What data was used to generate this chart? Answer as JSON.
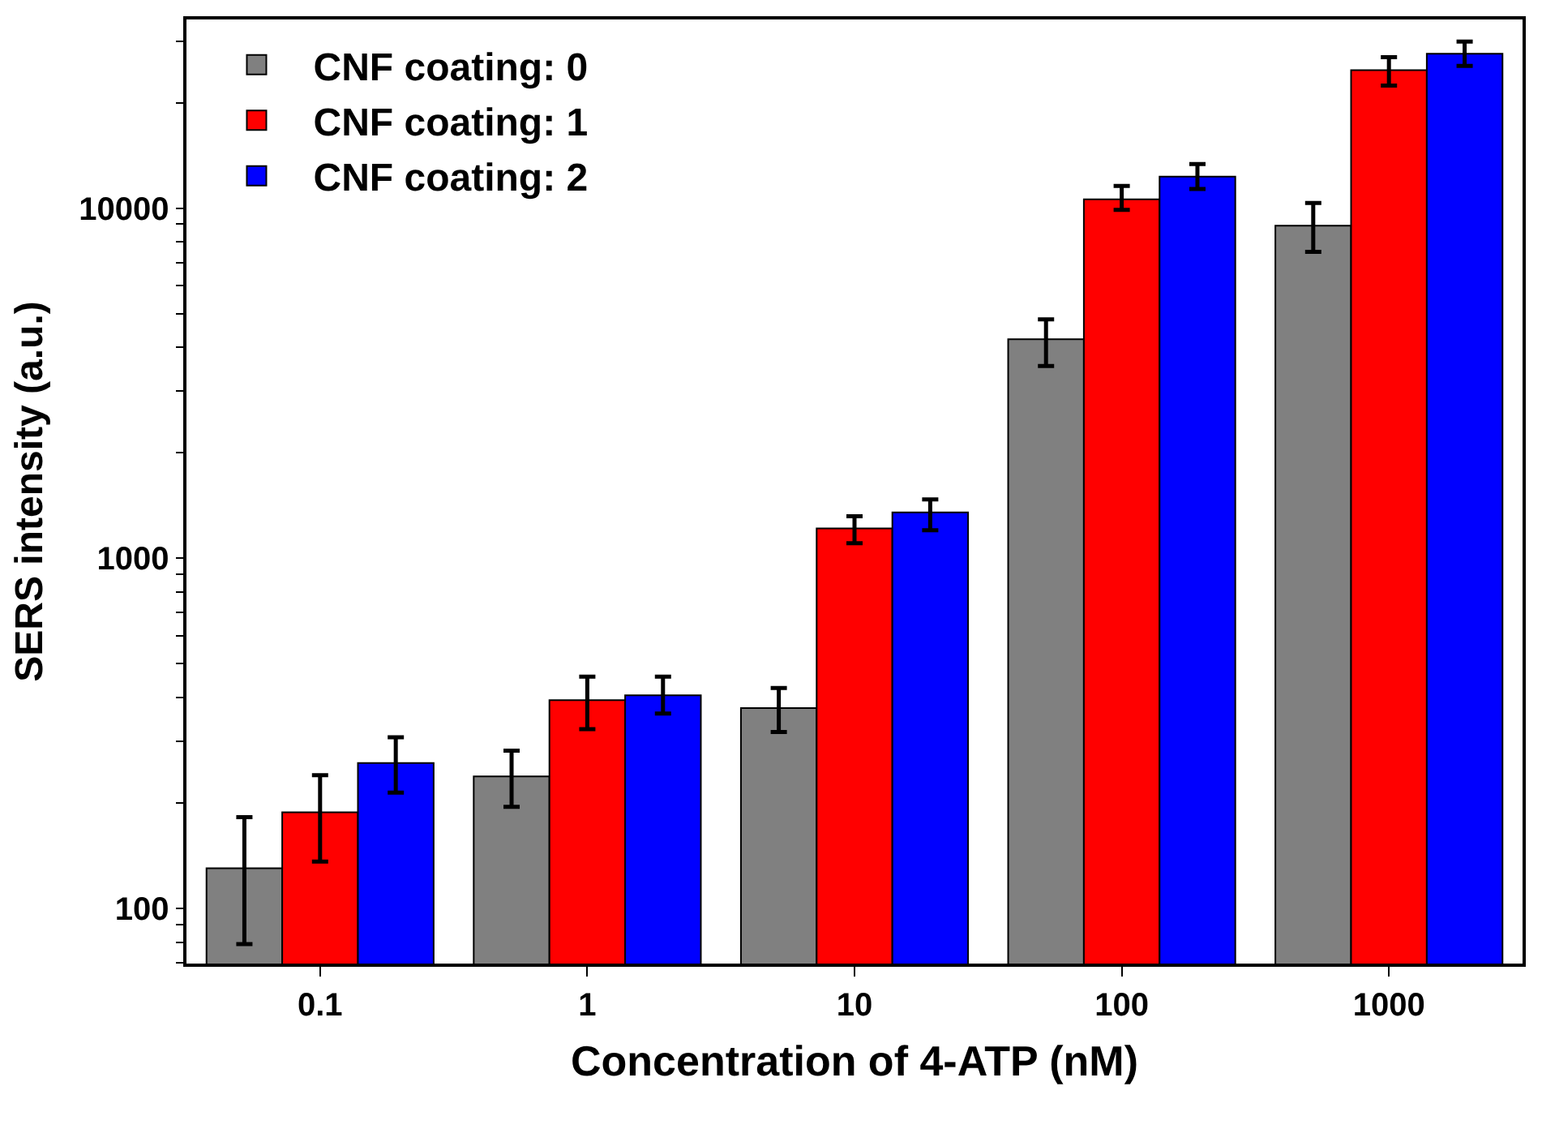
{
  "chart_data": {
    "type": "bar",
    "xlabel": "Concentration of 4-ATP (nM)",
    "ylabel": "SERS intensity (a.u.)",
    "categories": [
      "0.1",
      "1",
      "10",
      "100",
      "1000"
    ],
    "series": [
      {
        "name": "CNF coating: 0",
        "color": "#808080",
        "values": [
          130,
          238,
          373,
          4220,
          8910
        ],
        "errors": [
          [
            79,
            182
          ],
          [
            195,
            282
          ],
          [
            319,
            426
          ],
          [
            3540,
            4810
          ],
          [
            7500,
            10350
          ]
        ]
      },
      {
        "name": "CNF coating: 1",
        "color": "#ff0000",
        "values": [
          188,
          393,
          1216,
          10600,
          24800
        ],
        "errors": [
          [
            136,
            240
          ],
          [
            325,
            459
          ],
          [
            1104,
            1318
          ],
          [
            9890,
            11570
          ],
          [
            22400,
            27000
          ]
        ]
      },
      {
        "name": "CNF coating: 2",
        "color": "#0000ff",
        "values": [
          260,
          406,
          1352,
          12300,
          27600
        ],
        "errors": [
          [
            214,
            308
          ],
          [
            360,
            459
          ],
          [
            1202,
            1472
          ],
          [
            11350,
            13370
          ],
          [
            25500,
            29900
          ]
        ]
      }
    ],
    "log": "y",
    "ylim": [
      69.5,
      34600
    ],
    "yticks": [
      {
        "value": 70,
        "label": null
      },
      {
        "value": 80,
        "label": null
      },
      {
        "value": 90,
        "label": null
      },
      100,
      {
        "value": 200,
        "label": null
      },
      {
        "value": 300,
        "label": null
      },
      {
        "value": 400,
        "label": null
      },
      {
        "value": 500,
        "label": null
      },
      {
        "value": 600,
        "label": null
      },
      {
        "value": 700,
        "label": null
      },
      {
        "value": 800,
        "label": null
      },
      {
        "value": 900,
        "label": null
      },
      1000,
      {
        "value": 2000,
        "label": null
      },
      {
        "value": 3000,
        "label": null
      },
      {
        "value": 4000,
        "label": null
      },
      {
        "value": 5000,
        "label": null
      },
      {
        "value": 6000,
        "label": null
      },
      {
        "value": 7000,
        "label": null
      },
      {
        "value": 8000,
        "label": null
      },
      {
        "value": 9000,
        "label": null
      },
      10000,
      {
        "value": 20000,
        "label": null
      },
      {
        "value": 30000,
        "label": null
      }
    ],
    "legend": "top left"
  }
}
